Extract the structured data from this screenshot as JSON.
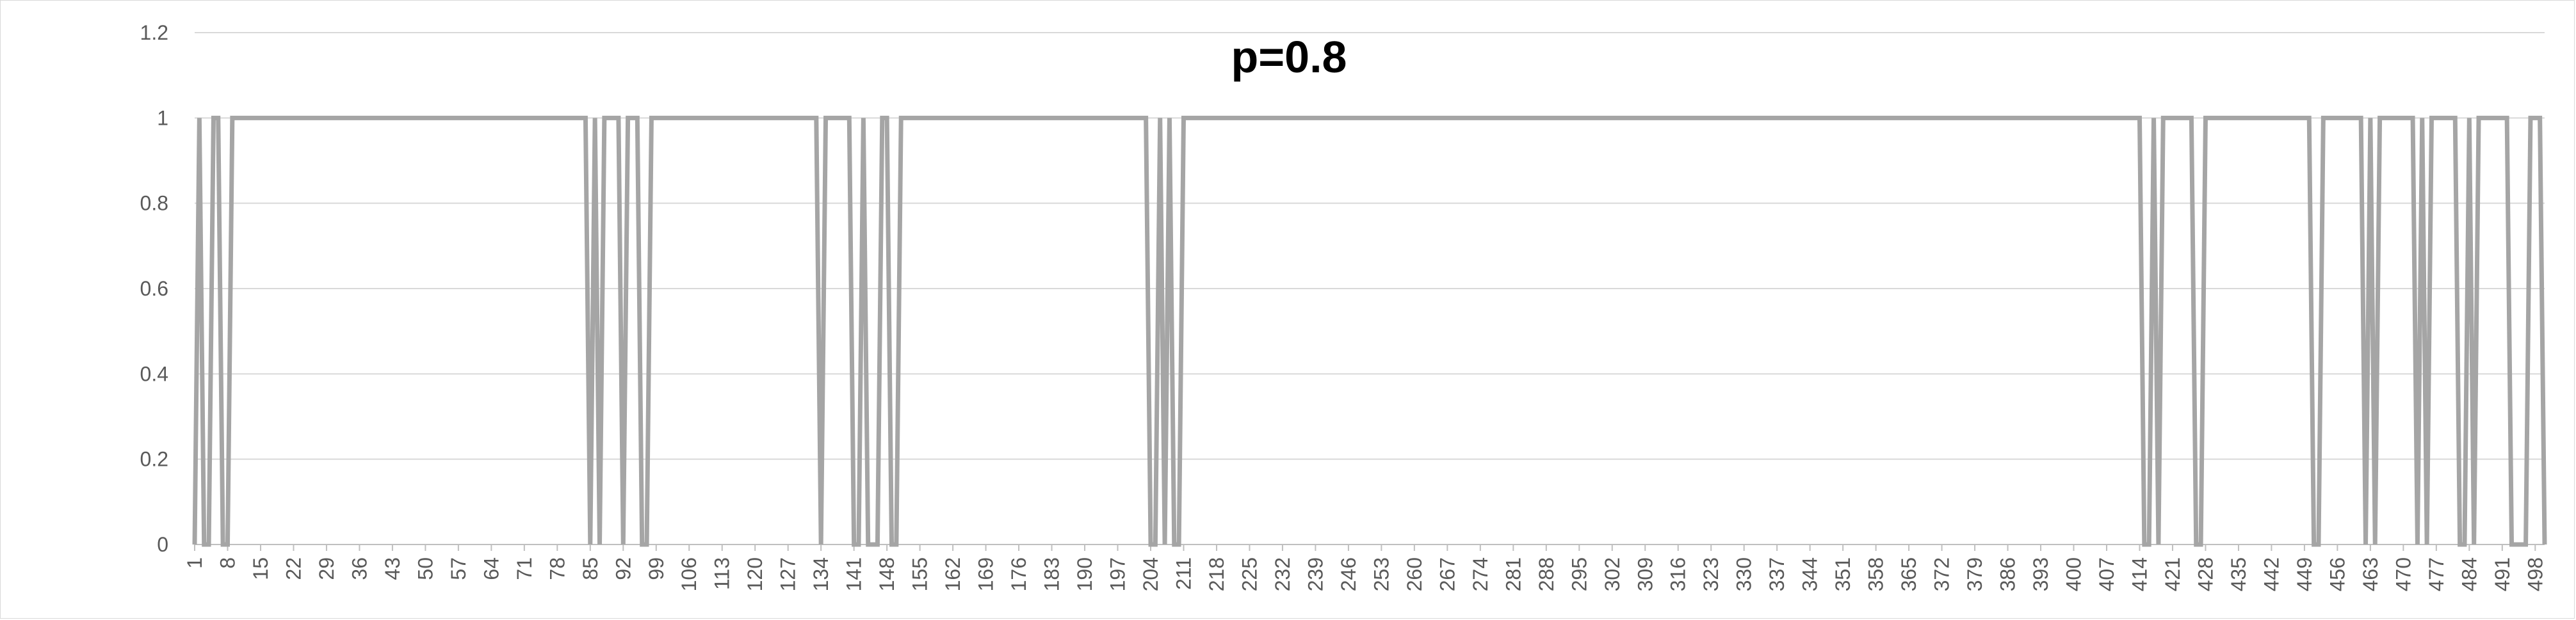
{
  "chart_data": {
    "type": "line",
    "title": "p=0.8",
    "xlabel": "",
    "ylabel": "",
    "x_start": 1,
    "x_end": 500,
    "x_tick_labels": [
      "1",
      "8",
      "15",
      "22",
      "29",
      "36",
      "43",
      "50",
      "57",
      "64",
      "71",
      "78",
      "85",
      "92",
      "99",
      "106",
      "113",
      "120",
      "127",
      "134",
      "141",
      "148",
      "155",
      "162",
      "169",
      "176",
      "183",
      "190",
      "197",
      "204",
      "211",
      "218",
      "225",
      "232",
      "239",
      "246",
      "253",
      "260",
      "267",
      "274",
      "281",
      "288",
      "295",
      "302",
      "309",
      "316",
      "323",
      "330",
      "337",
      "344",
      "351",
      "358",
      "365",
      "372",
      "379",
      "386",
      "393",
      "400",
      "407",
      "414",
      "421",
      "428",
      "435",
      "442",
      "449",
      "456",
      "463",
      "470",
      "477",
      "484",
      "491",
      "498"
    ],
    "y_tick_labels": [
      "0",
      "0.2",
      "0.4",
      "0.6",
      "0.8",
      "1",
      "1.2"
    ],
    "ylim": [
      0,
      1.2
    ],
    "grid": true,
    "legend": "none",
    "series_color": "#a5a5a5",
    "series": [
      {
        "zero_indices": [
          1,
          3,
          4,
          7,
          8,
          85,
          87,
          92,
          96,
          97,
          134,
          141,
          142,
          144,
          145,
          146,
          149,
          150,
          204,
          205,
          207,
          209,
          210,
          415,
          416,
          418,
          426,
          427,
          451,
          452,
          462,
          464,
          473,
          475,
          482,
          483,
          485,
          493,
          494,
          495,
          496,
          500
        ],
        "default_value": 1
      }
    ]
  }
}
